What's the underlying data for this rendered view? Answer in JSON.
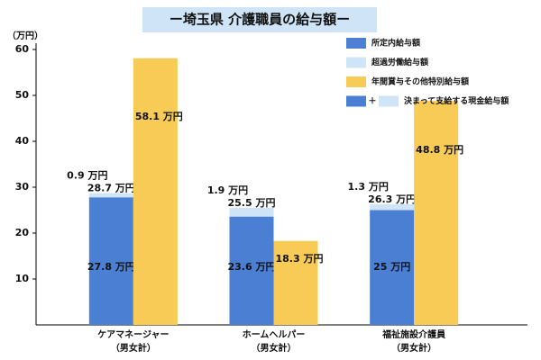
{
  "chart_data": {
    "type": "bar",
    "title": "ー埼玉県 介護職員の給与額ー",
    "y_label": "（万円）",
    "categories": [
      "ケアマネージャー",
      "ホームヘルパー",
      "福祉施設介護員"
    ],
    "category_sublabels": [
      "（男女計）",
      "（男女計）",
      "（男女計）"
    ],
    "ylim": [
      0,
      60
    ],
    "yticks": [
      10,
      20,
      30,
      40,
      50,
      60
    ],
    "series": [
      {
        "name": "所定内給与額",
        "color": "#4a7fd4",
        "stack": "a",
        "values": [
          27.8,
          23.6,
          25
        ],
        "value_labels": [
          "27.8 万円",
          "23.6 万円",
          "25 万円"
        ]
      },
      {
        "name": "超過労働給与額",
        "color": "#cfe4f7",
        "stack": "a",
        "values": [
          0.9,
          1.9,
          1.3
        ],
        "value_labels": [
          "0.9 万円",
          "1.9 万円",
          "1.3 万円"
        ]
      },
      {
        "name": "年間賞与その他特別給与額",
        "color": "#f7cb55",
        "stack": "b",
        "values": [
          58.1,
          18.3,
          48.8
        ],
        "value_labels": [
          "58.1 万円",
          "18.3 万円",
          "48.8 万円"
        ]
      }
    ],
    "total_labels": [
      "28.7 万円",
      "25.5 万円",
      "26.3 万円"
    ],
    "legend_combined": {
      "plus": "＋",
      "label": "決まって支給する現金給与額"
    }
  }
}
